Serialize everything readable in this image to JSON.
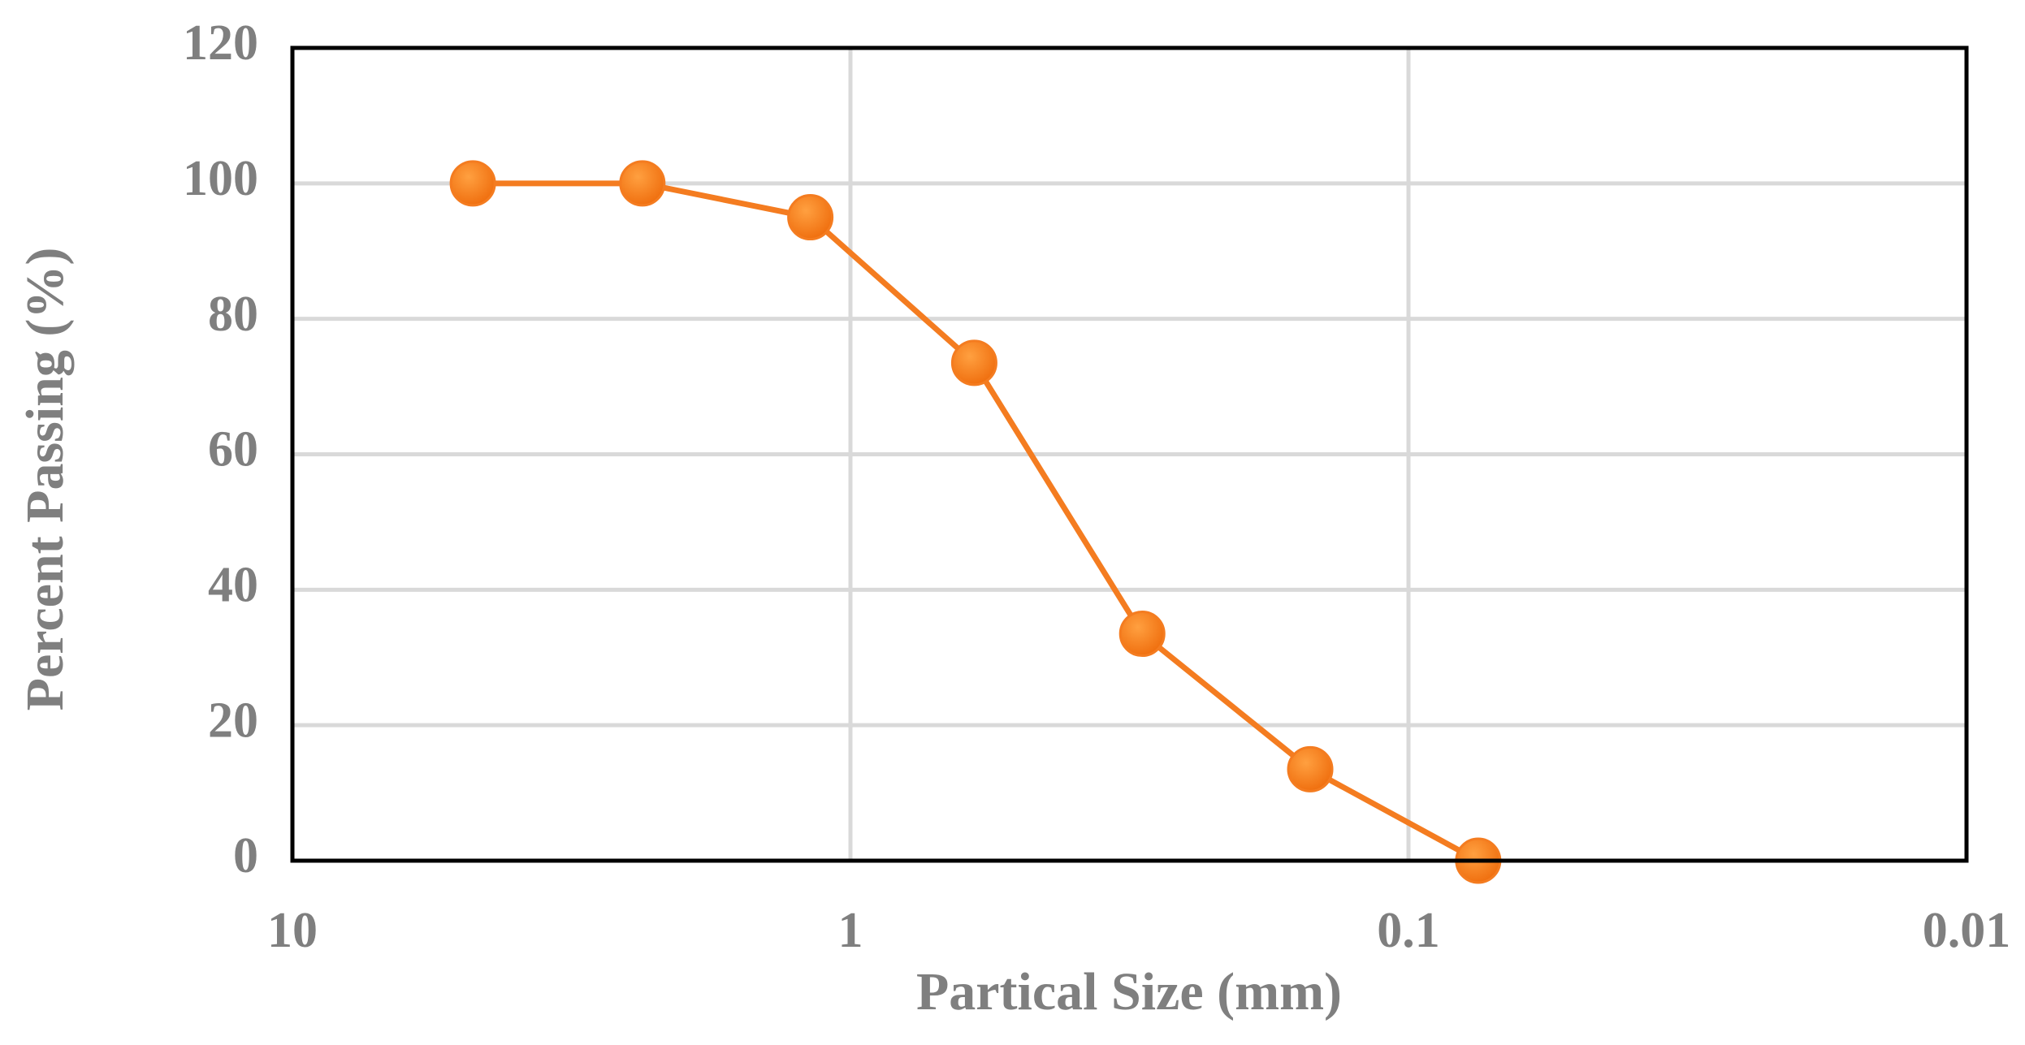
{
  "chart_data": {
    "type": "line",
    "x_label": "Partical Size (mm)",
    "y_label": "Percent  Passing (%)",
    "x": [
      4.75,
      2.36,
      1.18,
      0.6,
      0.3,
      0.15,
      0.075
    ],
    "series": [
      {
        "color": "#f47c20",
        "values": [
          100,
          100,
          95,
          73.5,
          33.5,
          13.5,
          0
        ]
      }
    ],
    "xlim": [
      10,
      0.01
    ],
    "xticks": [
      10,
      1,
      0.1,
      0.01
    ],
    "x_log": true,
    "ylim": [
      0,
      120
    ],
    "yticks": [
      0,
      20,
      40,
      60,
      80,
      100,
      120
    ],
    "grid": true
  }
}
